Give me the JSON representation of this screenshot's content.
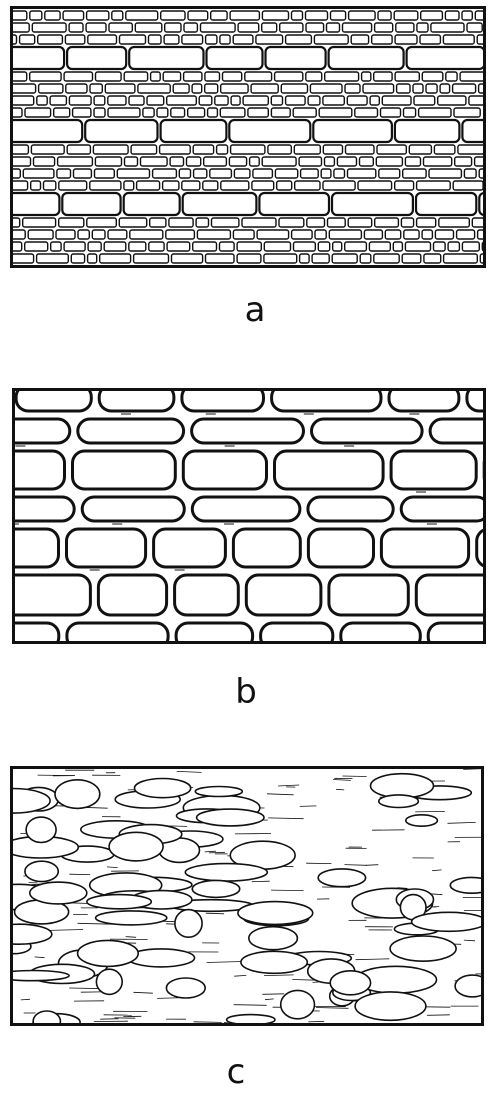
{
  "figure": {
    "panels": [
      {
        "id": "a",
        "label": "a"
      },
      {
        "id": "b",
        "label": "b"
      },
      {
        "id": "c",
        "label": "c"
      }
    ]
  },
  "colors": {
    "ink": "#111111",
    "paper": "#ffffff"
  }
}
